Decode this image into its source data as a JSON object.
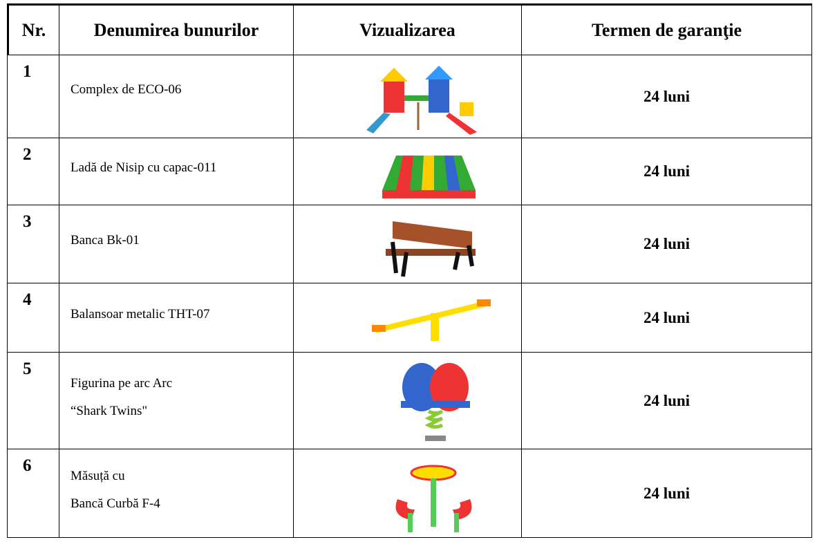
{
  "table": {
    "header": [
      "Nr.",
      "Denumirea bunurilor",
      "Vizualizarea",
      "Termen de garanţie"
    ],
    "rows": [
      {
        "nr": "1",
        "name": [
          "Complex de ECO-06"
        ],
        "warranty": "24 luni"
      },
      {
        "nr": "2",
        "name": [
          "Ladă de Nisip cu capac-011"
        ],
        "warranty": "24 luni"
      },
      {
        "nr": "3",
        "name": [
          "Banca Bk-01"
        ],
        "warranty": "24 luni"
      },
      {
        "nr": "4",
        "name": [
          "Balansoar metalic THT-07"
        ],
        "warranty": "24 luni"
      },
      {
        "nr": "5",
        "name": [
          "Figurina pe arc Arc",
          "“Shark Twins\""
        ],
        "warranty": "24 luni"
      },
      {
        "nr": "6",
        "name": [
          "Măsuță cu",
          "Bancă Curbă F-4"
        ],
        "warranty": "24 luni"
      }
    ]
  }
}
